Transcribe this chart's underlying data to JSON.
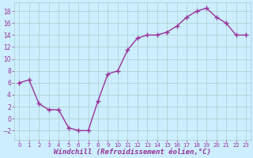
{
  "x": [
    0,
    1,
    2,
    3,
    4,
    5,
    6,
    7,
    8,
    9,
    10,
    11,
    12,
    13,
    14,
    15,
    16,
    17,
    18,
    19,
    20,
    21,
    22,
    23
  ],
  "y": [
    6,
    6.5,
    2.5,
    1.5,
    1.5,
    -1.5,
    -2.0,
    -2.0,
    3.0,
    7.5,
    8.0,
    11.5,
    13.5,
    14.0,
    14.0,
    14.5,
    15.5,
    17.0,
    18.0,
    18.5,
    17.0,
    16.0,
    14.0,
    14.0
  ],
  "line_color": "#993399",
  "marker": "+",
  "marker_size": 4,
  "marker_lw": 1.0,
  "line_width": 1.0,
  "background_color": "#cceeff",
  "grid_color": "#aacccc",
  "xlabel": "Windchill (Refroidissement éolien,°C)",
  "xlabel_fontsize": 6.5,
  "tick_fontsize_x": 5.0,
  "tick_fontsize_y": 5.5,
  "tick_color": "#993399",
  "yticks": [
    -2,
    0,
    2,
    4,
    6,
    8,
    10,
    12,
    14,
    16,
    18
  ],
  "ylim": [
    -3.5,
    19.5
  ],
  "xlim": [
    -0.5,
    23.5
  ],
  "xticks": [
    0,
    1,
    2,
    3,
    4,
    5,
    6,
    7,
    8,
    9,
    10,
    11,
    12,
    13,
    14,
    15,
    16,
    17,
    18,
    19,
    20,
    21,
    22,
    23
  ]
}
